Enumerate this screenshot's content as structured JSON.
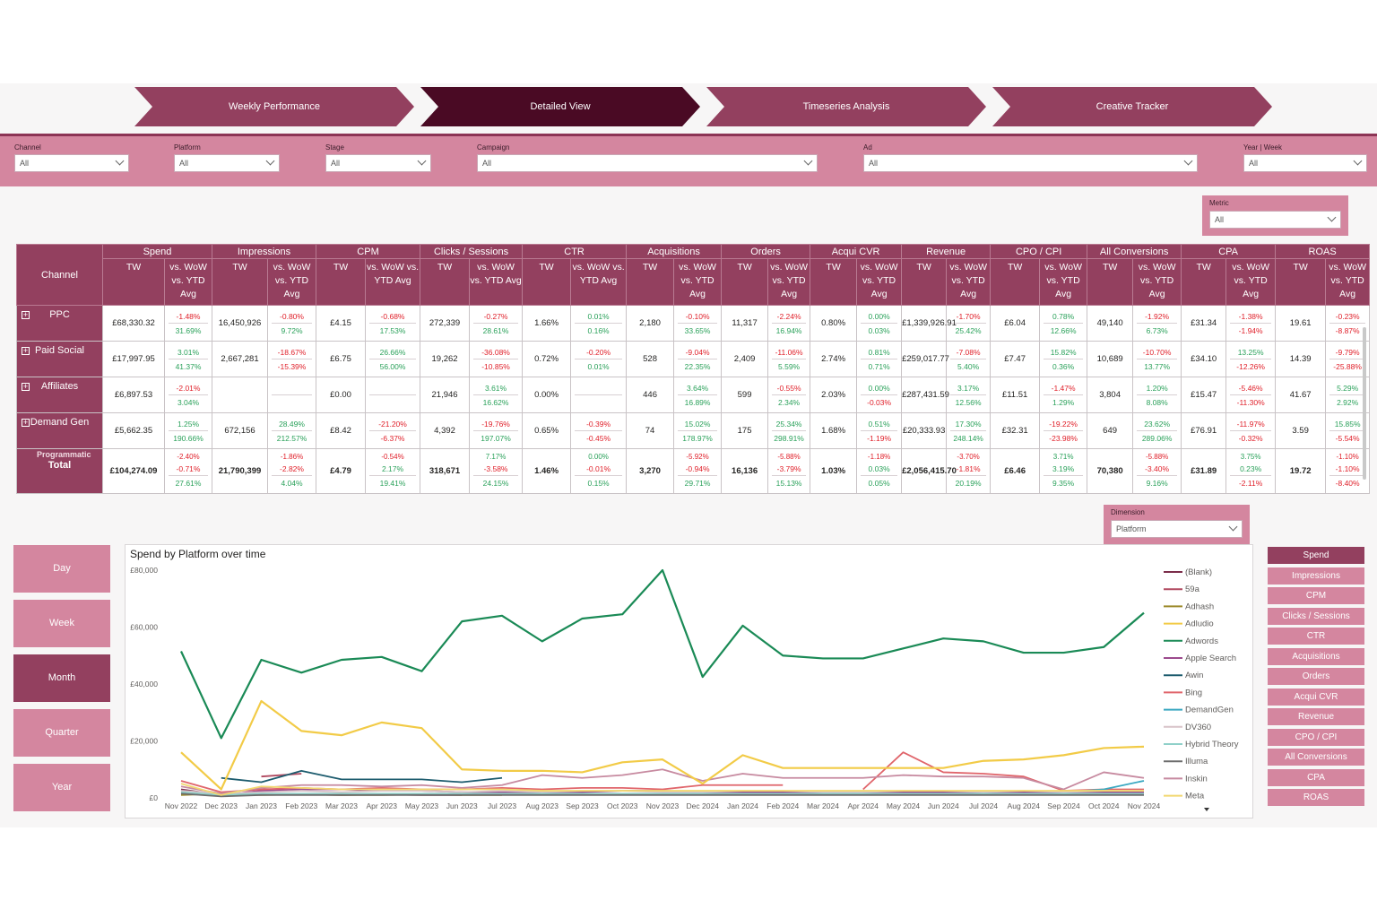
{
  "nav": [
    {
      "label": "Weekly Performance",
      "active": false
    },
    {
      "label": "Detailed View",
      "active": true
    },
    {
      "label": "Timeseries Analysis",
      "active": false
    },
    {
      "label": "Creative Tracker",
      "active": false
    }
  ],
  "filters": [
    {
      "label": "Channel",
      "value": "All"
    },
    {
      "label": "Platform",
      "value": "All"
    },
    {
      "label": "Stage",
      "value": "All"
    },
    {
      "label": "Campaign",
      "value": "All"
    },
    {
      "label": "Ad",
      "value": "All"
    },
    {
      "label": "Year | Week",
      "value": "All"
    }
  ],
  "metric_slicer": {
    "label": "Metric",
    "value": "All"
  },
  "dimension_slicer": {
    "label": "Dimension",
    "value": "Platform"
  },
  "table": {
    "row_header": "Channel",
    "groups": [
      "Spend",
      "Impressions",
      "CPM",
      "Clicks / Sessions",
      "CTR",
      "Acquisitions",
      "Orders",
      "Acqui CVR",
      "Revenue",
      "CPO / CPI",
      "All Conversions",
      "CPA",
      "ROAS"
    ],
    "sub_tw": "TW",
    "sub_cmp": "vs. WoW vs. YTD Avg",
    "rows": [
      {
        "channel": "PPC",
        "cells": [
          {
            "tw": "£68,330.32",
            "a": "-1.48%",
            "b": "31.69%"
          },
          {
            "tw": "16,450,926",
            "a": "-0.80%",
            "b": "9.72%"
          },
          {
            "tw": "£4.15",
            "a": "-0.68%",
            "b": "17.53%"
          },
          {
            "tw": "272,339",
            "a": "-0.27%",
            "b": "28.61%"
          },
          {
            "tw": "1.66%",
            "a": "0.01%",
            "b": "0.16%"
          },
          {
            "tw": "2,180",
            "a": "-0.10%",
            "b": "33.65%"
          },
          {
            "tw": "11,317",
            "a": "-2.24%",
            "b": "16.94%"
          },
          {
            "tw": "0.80%",
            "a": "0.00%",
            "b": "0.03%"
          },
          {
            "tw": "£1,339,926.91",
            "a": "-1.70%",
            "b": "25.42%"
          },
          {
            "tw": "£6.04",
            "a": "0.78%",
            "b": "12.66%"
          },
          {
            "tw": "49,140",
            "a": "-1.92%",
            "b": "6.73%"
          },
          {
            "tw": "£31.34",
            "a": "-1.38%",
            "b": "-1.94%"
          },
          {
            "tw": "19.61",
            "a": "-0.23%",
            "b": "-8.87%"
          }
        ]
      },
      {
        "channel": "Paid Social",
        "cells": [
          {
            "tw": "£17,997.95",
            "a": "3.01%",
            "b": "41.37%"
          },
          {
            "tw": "2,667,281",
            "a": "-18.67%",
            "b": "-15.39%"
          },
          {
            "tw": "£6.75",
            "a": "26.66%",
            "b": "56.00%"
          },
          {
            "tw": "19,262",
            "a": "-36.08%",
            "b": "-10.85%"
          },
          {
            "tw": "0.72%",
            "a": "-0.20%",
            "b": "0.01%"
          },
          {
            "tw": "528",
            "a": "-9.04%",
            "b": "22.35%"
          },
          {
            "tw": "2,409",
            "a": "-11.06%",
            "b": "5.59%"
          },
          {
            "tw": "2.74%",
            "a": "0.81%",
            "b": "0.71%"
          },
          {
            "tw": "£259,017.77",
            "a": "-7.08%",
            "b": "5.40%"
          },
          {
            "tw": "£7.47",
            "a": "15.82%",
            "b": "0.36%"
          },
          {
            "tw": "10,689",
            "a": "-10.70%",
            "b": "13.77%"
          },
          {
            "tw": "£34.10",
            "a": "13.25%",
            "b": "-12.26%"
          },
          {
            "tw": "14.39",
            "a": "-9.79%",
            "b": "-25.88%"
          }
        ]
      },
      {
        "channel": "Affiliates",
        "cells": [
          {
            "tw": "£6,897.53",
            "a": "-2.01%",
            "b": "3.04%"
          },
          {
            "tw": "",
            "a": "",
            "b": ""
          },
          {
            "tw": "£0.00",
            "a": "",
            "b": ""
          },
          {
            "tw": "21,946",
            "a": "3.61%",
            "b": "16.62%"
          },
          {
            "tw": "0.00%",
            "a": "",
            "b": ""
          },
          {
            "tw": "446",
            "a": "3.64%",
            "b": "16.89%"
          },
          {
            "tw": "599",
            "a": "-0.55%",
            "b": "2.34%"
          },
          {
            "tw": "2.03%",
            "a": "0.00%",
            "b": "-0.03%"
          },
          {
            "tw": "£287,431.59",
            "a": "3.17%",
            "b": "12.56%"
          },
          {
            "tw": "£11.51",
            "a": "-1.47%",
            "b": "1.29%"
          },
          {
            "tw": "3,804",
            "a": "1.20%",
            "b": "8.08%"
          },
          {
            "tw": "£15.47",
            "a": "-5.46%",
            "b": "-11.30%"
          },
          {
            "tw": "41.67",
            "a": "5.29%",
            "b": "2.92%"
          }
        ]
      },
      {
        "channel": "Demand Gen",
        "cells": [
          {
            "tw": "£5,662.35",
            "a": "1.25%",
            "b": "190.66%"
          },
          {
            "tw": "672,156",
            "a": "28.49%",
            "b": "212.57%"
          },
          {
            "tw": "£8.42",
            "a": "-21.20%",
            "b": "-6.37%"
          },
          {
            "tw": "4,392",
            "a": "-19.76%",
            "b": "197.07%"
          },
          {
            "tw": "0.65%",
            "a": "-0.39%",
            "b": "-0.45%"
          },
          {
            "tw": "74",
            "a": "15.02%",
            "b": "178.97%"
          },
          {
            "tw": "175",
            "a": "25.34%",
            "b": "298.91%"
          },
          {
            "tw": "1.68%",
            "a": "0.51%",
            "b": "-1.19%"
          },
          {
            "tw": "£20,333.93",
            "a": "17.30%",
            "b": "248.14%"
          },
          {
            "tw": "£32.31",
            "a": "-19.22%",
            "b": "-23.98%"
          },
          {
            "tw": "649",
            "a": "23.62%",
            "b": "289.06%"
          },
          {
            "tw": "£76.91",
            "a": "-11.97%",
            "b": "-0.32%"
          },
          {
            "tw": "3.59",
            "a": "15.85%",
            "b": "-5.54%"
          }
        ]
      }
    ],
    "partial_row_label": "Programmatic",
    "partial_row_values": [
      "-2.40%",
      "-1.86%",
      "-0.54%",
      "7.17%",
      "0.00%",
      "-5.92%",
      "-5.88%",
      "-1.18%",
      "-3.70%",
      "3.71%",
      "-5.88%",
      "3.75%",
      "-1.10%"
    ],
    "total": {
      "channel": "Total",
      "cells": [
        {
          "tw": "£104,274.09",
          "a": "-0.71%",
          "b": "27.61%"
        },
        {
          "tw": "21,790,399",
          "a": "-2.82%",
          "b": "4.04%"
        },
        {
          "tw": "£4.79",
          "a": "2.17%",
          "b": "19.41%"
        },
        {
          "tw": "318,671",
          "a": "-3.58%",
          "b": "24.15%"
        },
        {
          "tw": "1.46%",
          "a": "-0.01%",
          "b": "0.15%"
        },
        {
          "tw": "3,270",
          "a": "-0.94%",
          "b": "29.71%"
        },
        {
          "tw": "16,136",
          "a": "-3.79%",
          "b": "15.13%"
        },
        {
          "tw": "1.03%",
          "a": "0.03%",
          "b": "0.05%"
        },
        {
          "tw": "£2,056,415.70",
          "a": "-1.81%",
          "b": "20.19%"
        },
        {
          "tw": "£6.46",
          "a": "3.19%",
          "b": "9.35%"
        },
        {
          "tw": "70,380",
          "a": "-3.40%",
          "b": "9.16%"
        },
        {
          "tw": "£31.89",
          "a": "0.23%",
          "b": "-2.11%"
        },
        {
          "tw": "19.72",
          "a": "-1.10%",
          "b": "-8.40%"
        }
      ]
    }
  },
  "period_buttons": [
    {
      "label": "Day",
      "active": false
    },
    {
      "label": "Week",
      "active": false
    },
    {
      "label": "Month",
      "active": true
    },
    {
      "label": "Quarter",
      "active": false
    },
    {
      "label": "Year",
      "active": false
    }
  ],
  "metric_buttons": [
    {
      "label": "Spend",
      "active": true
    },
    {
      "label": "Impressions",
      "active": false
    },
    {
      "label": "CPM",
      "active": false
    },
    {
      "label": "Clicks / Sessions",
      "active": false
    },
    {
      "label": "CTR",
      "active": false
    },
    {
      "label": "Acquisitions",
      "active": false
    },
    {
      "label": "Orders",
      "active": false
    },
    {
      "label": "Acqui CVR",
      "active": false
    },
    {
      "label": "Revenue",
      "active": false
    },
    {
      "label": "CPO / CPI",
      "active": false
    },
    {
      "label": "All Conversions",
      "active": false
    },
    {
      "label": "CPA",
      "active": false
    },
    {
      "label": "ROAS",
      "active": false
    }
  ],
  "colors": {
    "primary": "#93405f",
    "dark": "#4a0a24",
    "light": "#d4869f",
    "positive": "#2aa15a",
    "negative": "#e0202a"
  },
  "chart_data": {
    "type": "line",
    "title": "Spend by Platform over time",
    "x": [
      "Nov 2022",
      "Dec 2023",
      "Jan 2023",
      "Feb 2023",
      "Mar 2023",
      "Apr 2023",
      "May 2023",
      "Jun 2023",
      "Jul 2023",
      "Aug 2023",
      "Sep 2023",
      "Oct 2023",
      "Nov 2023",
      "Dec 2024",
      "Jan 2024",
      "Feb 2024",
      "Mar 2024",
      "Apr 2024",
      "May 2024",
      "Jun 2024",
      "Jul 2024",
      "Aug 2024",
      "Sep 2024",
      "Oct 2024",
      "Nov 2024"
    ],
    "ylim": [
      0,
      80000
    ],
    "yticks": [
      "£0",
      "£20,000",
      "£40,000",
      "£60,000",
      "£80,000"
    ],
    "ytick_values": [
      0,
      20000,
      40000,
      60000,
      80000
    ],
    "legend_position": "right",
    "series": [
      {
        "name": "(Blank)",
        "color": "#7b2d4a",
        "values": [
          3000,
          1000,
          1500,
          1200,
          1000,
          1200,
          1000,
          1000,
          null,
          null,
          null,
          null,
          null,
          null,
          null,
          null,
          null,
          null,
          null,
          null,
          null,
          null,
          null,
          null,
          null
        ]
      },
      {
        "name": "59a",
        "color": "#b0485f",
        "values": [
          null,
          null,
          7500,
          8500,
          null,
          null,
          null,
          null,
          null,
          null,
          null,
          null,
          null,
          null,
          null,
          null,
          null,
          null,
          null,
          null,
          null,
          null,
          null,
          null,
          null
        ]
      },
      {
        "name": "Adhash",
        "color": "#9c8a2a",
        "values": [
          1000,
          1500,
          1000,
          1200,
          1000,
          1000,
          1200,
          1000,
          1000,
          null,
          null,
          null,
          null,
          null,
          null,
          null,
          null,
          null,
          null,
          null,
          null,
          null,
          null,
          null,
          null
        ]
      },
      {
        "name": "Adludio",
        "color": "#f2cb47",
        "values": [
          16000,
          3000,
          34000,
          23500,
          22000,
          26500,
          24500,
          10000,
          9500,
          9500,
          9000,
          12500,
          13500,
          5000,
          15000,
          10500,
          10500,
          10500,
          10500,
          10500,
          13000,
          13500,
          15000,
          17500,
          18000
        ]
      },
      {
        "name": "Adwords",
        "color": "#1a8a56",
        "values": [
          51500,
          21000,
          48500,
          44000,
          48500,
          49500,
          44500,
          62000,
          64000,
          55000,
          63000,
          64500,
          80000,
          42500,
          60500,
          50000,
          49000,
          49000,
          52500,
          56000,
          55000,
          51000,
          51000,
          53000,
          65000
        ]
      },
      {
        "name": "Apple Search",
        "color": "#9b4a8d",
        "values": [
          2000,
          1000,
          2500,
          3000,
          3000,
          2500,
          2500,
          2000,
          2000,
          2000,
          2000,
          2500,
          2500,
          2000,
          2000,
          2000,
          2000,
          2000,
          2000,
          2000,
          2000,
          2000,
          2000,
          2000,
          2000
        ]
      },
      {
        "name": "Awin",
        "color": "#1d5c6e",
        "values": [
          null,
          7000,
          5500,
          9500,
          6500,
          6500,
          6500,
          5500,
          7000,
          null,
          null,
          null,
          null,
          null,
          null,
          null,
          null,
          null,
          null,
          null,
          null,
          null,
          null,
          null,
          null
        ]
      },
      {
        "name": "Bing",
        "color": "#e0656b",
        "values": [
          6000,
          2000,
          3000,
          3500,
          3000,
          3500,
          3000,
          3000,
          3500,
          3000,
          3500,
          3500,
          3000,
          4500,
          4500,
          4500,
          null,
          3000,
          16000,
          9000,
          8500,
          7500,
          2500,
          3000,
          3000
        ]
      },
      {
        "name": "DemandGen",
        "color": "#3aa8c1",
        "values": [
          null,
          null,
          null,
          null,
          null,
          null,
          null,
          null,
          null,
          null,
          null,
          null,
          null,
          null,
          null,
          null,
          null,
          null,
          null,
          null,
          null,
          null,
          2000,
          3000,
          6000
        ]
      },
      {
        "name": "DV360",
        "color": "#d8c3c8",
        "values": [
          2500,
          1500,
          2000,
          2500,
          2000,
          2500,
          2500,
          2000,
          2500,
          2000,
          2500,
          2500,
          2000,
          2000,
          2500,
          2500,
          2000,
          2000,
          2500,
          2500,
          2000,
          2500,
          2000,
          2500,
          2500
        ]
      },
      {
        "name": "Hybrid Theory",
        "color": "#8fd0c9",
        "values": [
          2000,
          1000,
          1500,
          1500,
          1500,
          1500,
          1500,
          1500,
          1500,
          1500,
          1500,
          1500,
          1500,
          1500,
          1500,
          1500,
          1500,
          1500,
          1500,
          1500,
          1500,
          1500,
          1500,
          1500,
          1500
        ]
      },
      {
        "name": "Illuma",
        "color": "#6c6c6c",
        "values": [
          1500,
          500,
          1000,
          1000,
          1000,
          1000,
          1000,
          1000,
          1000,
          1000,
          1000,
          1000,
          1000,
          1000,
          1000,
          1000,
          1000,
          1000,
          1000,
          1000,
          1000,
          1000,
          1000,
          1000,
          1000
        ]
      },
      {
        "name": "Inskin",
        "color": "#c78aa0",
        "values": [
          4000,
          1500,
          3500,
          4500,
          4500,
          4000,
          4500,
          3500,
          4500,
          8000,
          7000,
          8000,
          10000,
          6000,
          8500,
          7000,
          7000,
          7000,
          8000,
          7500,
          7500,
          7000,
          3000,
          9000,
          7000
        ]
      },
      {
        "name": "Meta",
        "color": "#f2d870",
        "values": [
          5000,
          1000,
          4000,
          3500,
          3000,
          3000,
          3000,
          3000,
          3000,
          2500,
          2500,
          2500,
          2500,
          2500,
          2500,
          2500,
          2500,
          2500,
          2500,
          2500,
          2500,
          2500,
          2500,
          2500,
          2500
        ]
      }
    ]
  }
}
